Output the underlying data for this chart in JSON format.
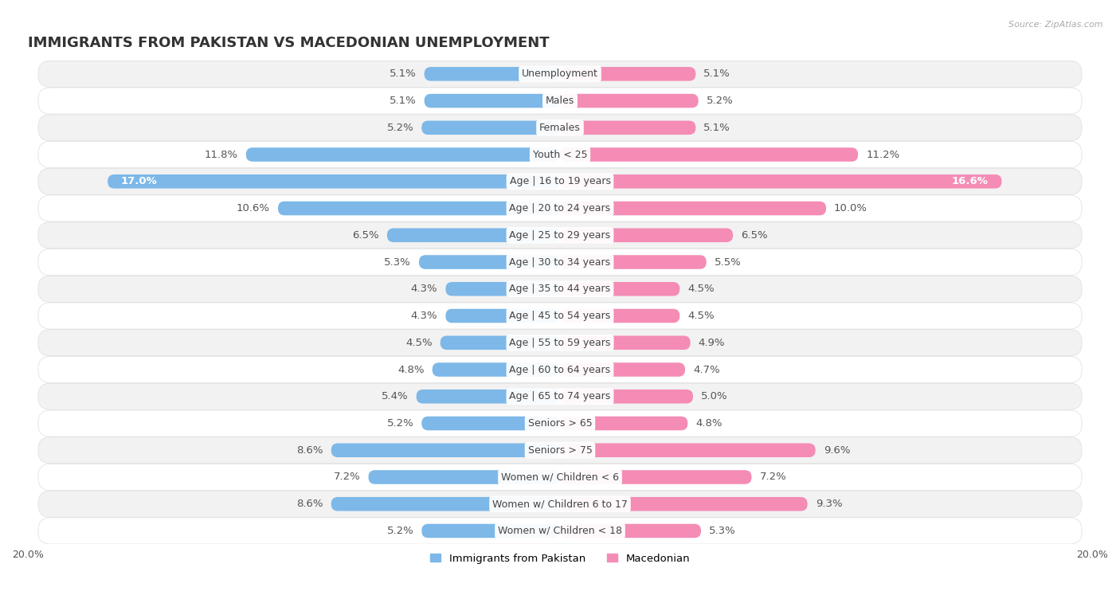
{
  "title": "IMMIGRANTS FROM PAKISTAN VS MACEDONIAN UNEMPLOYMENT",
  "source": "Source: ZipAtlas.com",
  "categories": [
    "Unemployment",
    "Males",
    "Females",
    "Youth < 25",
    "Age | 16 to 19 years",
    "Age | 20 to 24 years",
    "Age | 25 to 29 years",
    "Age | 30 to 34 years",
    "Age | 35 to 44 years",
    "Age | 45 to 54 years",
    "Age | 55 to 59 years",
    "Age | 60 to 64 years",
    "Age | 65 to 74 years",
    "Seniors > 65",
    "Seniors > 75",
    "Women w/ Children < 6",
    "Women w/ Children 6 to 17",
    "Women w/ Children < 18"
  ],
  "pakistan_values": [
    5.1,
    5.1,
    5.2,
    11.8,
    17.0,
    10.6,
    6.5,
    5.3,
    4.3,
    4.3,
    4.5,
    4.8,
    5.4,
    5.2,
    8.6,
    7.2,
    8.6,
    5.2
  ],
  "macedonian_values": [
    5.1,
    5.2,
    5.1,
    11.2,
    16.6,
    10.0,
    6.5,
    5.5,
    4.5,
    4.5,
    4.9,
    4.7,
    5.0,
    4.8,
    9.6,
    7.2,
    9.3,
    5.3
  ],
  "pakistan_color": "#7db8e8",
  "macedonian_color": "#f48cb6",
  "background_row_light": "#f2f2f2",
  "background_row_dark": "#e8e8e8",
  "bar_height": 0.52,
  "xlim": 20.0,
  "legend_pakistan": "Immigrants from Pakistan",
  "legend_macedonian": "Macedonian",
  "title_fontsize": 13,
  "label_fontsize": 9.5,
  "category_fontsize": 9
}
